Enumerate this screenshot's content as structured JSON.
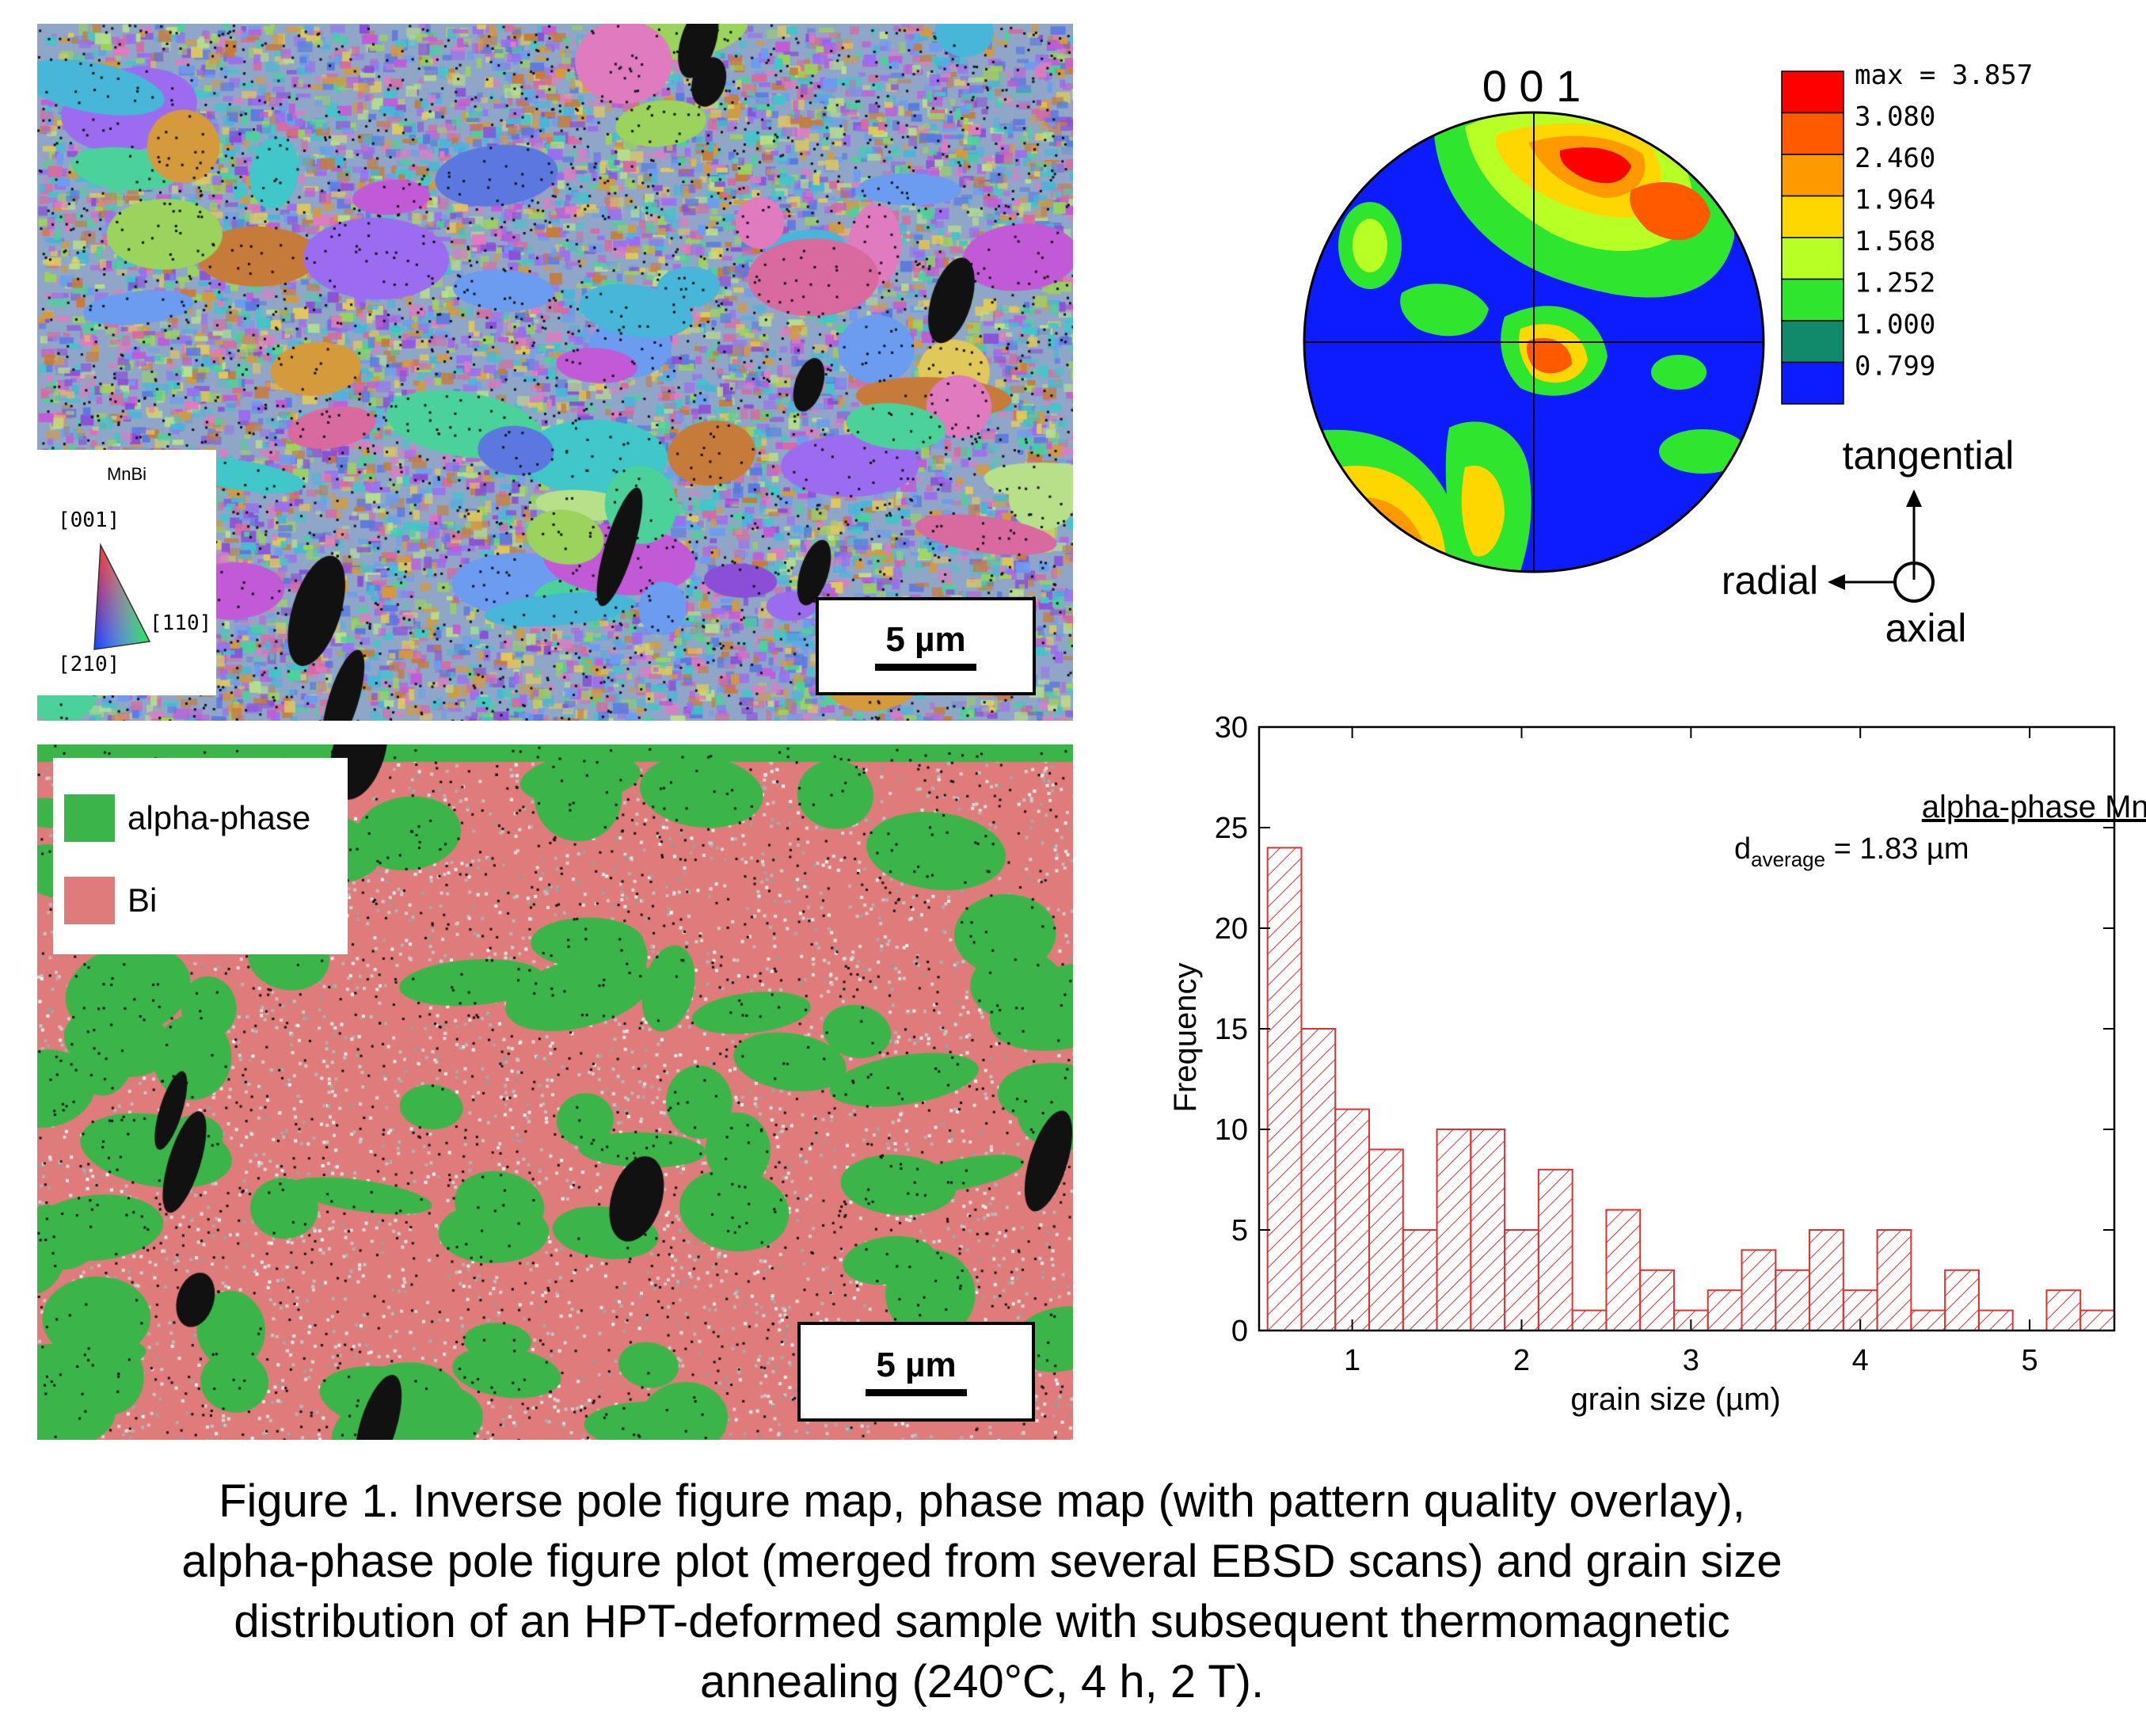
{
  "ipf_map": {
    "key_title": "MnBi",
    "key_labels": {
      "top": "[001]",
      "right": "[110]",
      "bottom": "[210]"
    },
    "scale_bar_label": "5 µm",
    "palette": [
      "#8a4fd6",
      "#c25ad8",
      "#5a78e0",
      "#47b6d8",
      "#4bd29a",
      "#9bd35c",
      "#d59a3c",
      "#c77b3a",
      "#e07bc0",
      "#6b9cf0",
      "#b8e08a",
      "#3fc7c9",
      "#9c6cf0",
      "#e0c95a",
      "#d86aa0"
    ]
  },
  "phase_map": {
    "legend": [
      {
        "label": "alpha-phase",
        "color": "#3bb54a"
      },
      {
        "label": "Bi",
        "color": "#e07b7b"
      }
    ],
    "scale_bar_label": "5 µm"
  },
  "pole_figure": {
    "title": "0 0 1",
    "colorbar": {
      "labels": [
        "max = 3.857",
        "3.080",
        "2.460",
        "1.964",
        "1.568",
        "1.252",
        "1.000",
        "0.799"
      ],
      "colors": [
        "#ff0000",
        "#ff5a00",
        "#ff9900",
        "#ffd700",
        "#b8ff26",
        "#2de62d",
        "#0f8a6a",
        "#0d1cff"
      ]
    },
    "axes_labels": {
      "tangential": "tangential",
      "radial": "radial",
      "axial": "axial"
    }
  },
  "chart_data": {
    "type": "bar",
    "title": "",
    "annotation_title": "alpha-phase MnBi",
    "annotation_value_prefix": "d",
    "annotation_value_sub": "average",
    "annotation_value_suffix": " = 1.83 µm",
    "xlabel": "grain size (µm)",
    "ylabel": "Frequency",
    "xlim": [
      0.45,
      5.5
    ],
    "ylim": [
      0,
      30
    ],
    "xticks": [
      1,
      2,
      3,
      4,
      5
    ],
    "yticks": [
      0,
      5,
      10,
      15,
      20,
      25,
      30
    ],
    "bin_width": 0.2,
    "bin_starts": [
      0.5,
      0.7,
      0.9,
      1.1,
      1.3,
      1.5,
      1.7,
      1.9,
      2.1,
      2.3,
      2.5,
      2.7,
      2.9,
      3.1,
      3.3,
      3.5,
      3.7,
      3.9,
      4.1,
      4.3,
      4.5,
      4.7,
      4.9,
      5.1,
      5.3
    ],
    "values": [
      24,
      15,
      11,
      9,
      5,
      10,
      10,
      5,
      8,
      1,
      6,
      3,
      1,
      2,
      4,
      3,
      5,
      2,
      5,
      1,
      3,
      1,
      0,
      2,
      1
    ],
    "bar_color": "#e03030"
  },
  "caption": [
    "Figure 1. Inverse pole figure map, phase map (with pattern quality overlay),",
    "alpha-phase pole figure plot (merged from several EBSD scans) and grain size",
    "distribution of an HPT-deformed sample with subsequent thermomagnetic",
    "annealing (240°C, 4 h, 2 T)."
  ]
}
